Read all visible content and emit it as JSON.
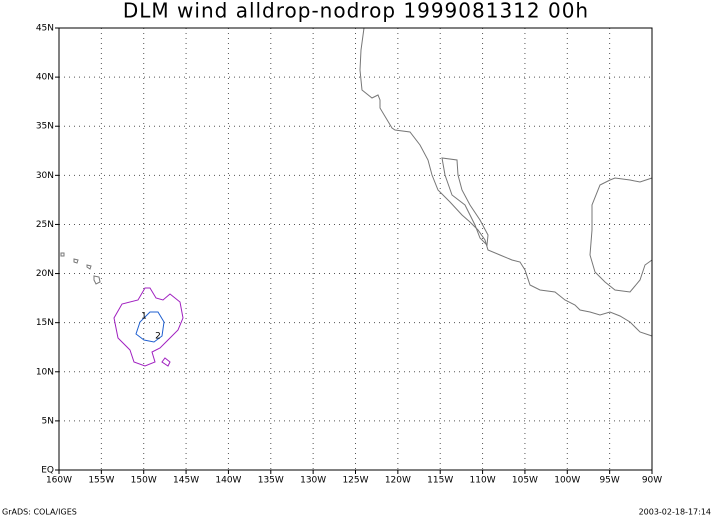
{
  "title": "DLM wind alldrop-nodrop 1999081312 00h",
  "map": {
    "lonlim": [
      -160,
      -90
    ],
    "latlim": [
      0,
      45
    ],
    "lonticks": [
      {
        "value": -160,
        "label": "160W"
      },
      {
        "value": -155,
        "label": "155W"
      },
      {
        "value": -150,
        "label": "150W"
      },
      {
        "value": -145,
        "label": "145W"
      },
      {
        "value": -140,
        "label": "140W"
      },
      {
        "value": -135,
        "label": "135W"
      },
      {
        "value": -130,
        "label": "130W"
      },
      {
        "value": -125,
        "label": "125W"
      },
      {
        "value": -120,
        "label": "120W"
      },
      {
        "value": -115,
        "label": "115W"
      },
      {
        "value": -110,
        "label": "110W"
      },
      {
        "value": -105,
        "label": "105W"
      },
      {
        "value": -100,
        "label": "100W"
      },
      {
        "value": -95,
        "label": "95W"
      },
      {
        "value": -90,
        "label": "90W"
      }
    ],
    "latticks": [
      {
        "value": 0,
        "label": "EQ"
      },
      {
        "value": 5,
        "label": "5N"
      },
      {
        "value": 10,
        "label": "10N"
      },
      {
        "value": 15,
        "label": "15N"
      },
      {
        "value": 20,
        "label": "20N"
      },
      {
        "value": 25,
        "label": "25N"
      },
      {
        "value": 30,
        "label": "30N"
      },
      {
        "value": 35,
        "label": "35N"
      },
      {
        "value": 40,
        "label": "40N"
      },
      {
        "value": 45,
        "label": "45N"
      }
    ],
    "grid": true,
    "contour_labels": [
      "1",
      "2"
    ]
  },
  "footer": {
    "left": "GrADS: COLA/IGES",
    "right": "2003-02-18-17:14"
  }
}
